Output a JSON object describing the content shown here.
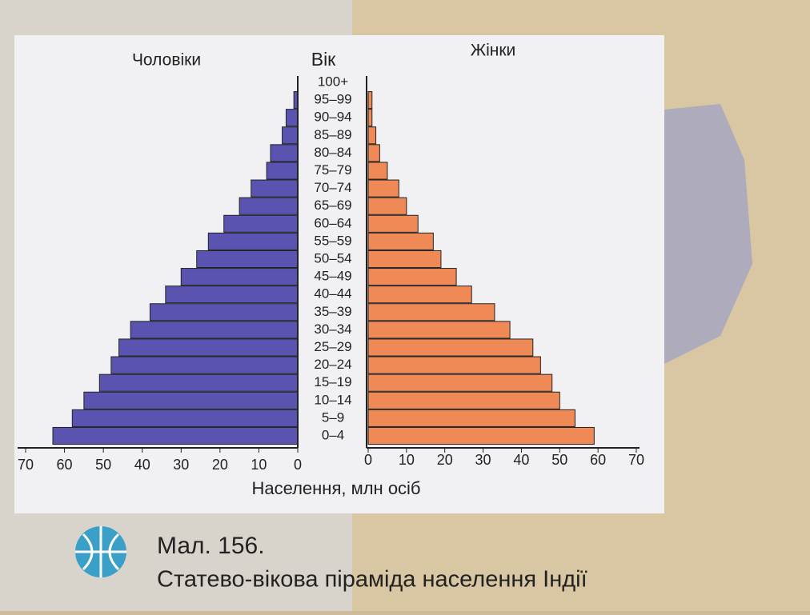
{
  "chart_data": {
    "type": "pyramid",
    "left_label": "Чоловіки",
    "center_label": "Вік",
    "right_label": "Жінки",
    "xlabel": "Населення, млн осіб",
    "categories": [
      "0–4",
      "5–9",
      "10–14",
      "15–19",
      "20–24",
      "25–29",
      "30–34",
      "35–39",
      "40–44",
      "45–49",
      "50–54",
      "55–59",
      "60–64",
      "65–69",
      "70–74",
      "75–79",
      "80–84",
      "85–89",
      "90–94",
      "95–99",
      "100+"
    ],
    "series": [
      {
        "name": "Чоловіки",
        "side": "left",
        "color": "#5a54b0",
        "values": [
          63,
          58,
          55,
          51,
          48,
          46,
          43,
          38,
          34,
          30,
          26,
          23,
          19,
          15,
          12,
          8,
          7,
          4,
          3,
          1,
          0
        ]
      },
      {
        "name": "Жінки",
        "side": "right",
        "color": "#ef8a56",
        "values": [
          59,
          54,
          50,
          48,
          45,
          43,
          37,
          33,
          27,
          23,
          19,
          17,
          13,
          10,
          8,
          5,
          3,
          2,
          1,
          1,
          0
        ]
      }
    ],
    "xlim": [
      0,
      70
    ],
    "xticks": [
      0,
      10,
      20,
      30,
      40,
      50,
      60,
      70
    ]
  },
  "figure_label": "Мал. 156.",
  "caption": "Статево-вікова піраміда населення Індії"
}
